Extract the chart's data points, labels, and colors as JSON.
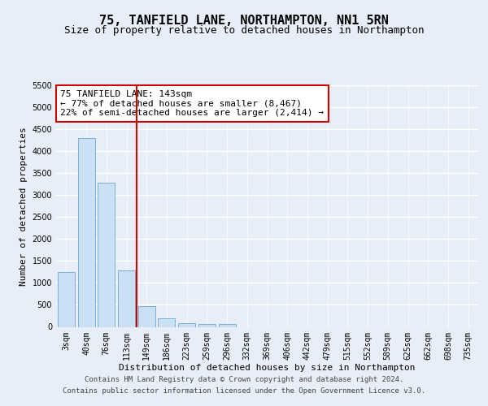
{
  "title_line1": "75, TANFIELD LANE, NORTHAMPTON, NN1 5RN",
  "title_line2": "Size of property relative to detached houses in Northampton",
  "xlabel": "Distribution of detached houses by size in Northampton",
  "ylabel": "Number of detached properties",
  "categories": [
    "3sqm",
    "40sqm",
    "76sqm",
    "113sqm",
    "149sqm",
    "186sqm",
    "223sqm",
    "259sqm",
    "296sqm",
    "332sqm",
    "369sqm",
    "406sqm",
    "442sqm",
    "479sqm",
    "515sqm",
    "552sqm",
    "589sqm",
    "625sqm",
    "662sqm",
    "698sqm",
    "735sqm"
  ],
  "values": [
    1250,
    4300,
    3280,
    1280,
    480,
    200,
    90,
    70,
    60,
    0,
    0,
    0,
    0,
    0,
    0,
    0,
    0,
    0,
    0,
    0,
    0
  ],
  "bar_color": "#cce0f5",
  "bar_edge_color": "#7bafd4",
  "vline_color": "#cc0000",
  "vline_pos": 3.5,
  "annotation_text": "75 TANFIELD LANE: 143sqm\n← 77% of detached houses are smaller (8,467)\n22% of semi-detached houses are larger (2,414) →",
  "annotation_box_color": "white",
  "annotation_box_edge_color": "#cc0000",
  "ylim": [
    0,
    5500
  ],
  "yticks": [
    0,
    500,
    1000,
    1500,
    2000,
    2500,
    3000,
    3500,
    4000,
    4500,
    5000,
    5500
  ],
  "footer_line1": "Contains HM Land Registry data © Crown copyright and database right 2024.",
  "footer_line2": "Contains public sector information licensed under the Open Government Licence v3.0.",
  "bg_color": "#e8eef8",
  "grid_color": "white",
  "title_fontsize": 11,
  "subtitle_fontsize": 9,
  "ylabel_fontsize": 8,
  "xlabel_fontsize": 8,
  "annotation_fontsize": 8,
  "tick_fontsize": 7,
  "footer_fontsize": 6.5
}
